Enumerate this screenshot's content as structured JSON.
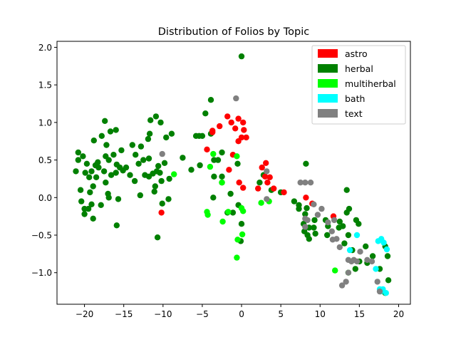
{
  "chart_data": {
    "type": "scatter",
    "title": "Distribution of Folios by Topic",
    "xlabel": "",
    "ylabel": "",
    "xlim": [
      -23.5,
      21.5
    ],
    "ylim": [
      -1.42,
      2.08
    ],
    "xticks": [
      -20,
      -15,
      -10,
      -5,
      0,
      5,
      10,
      15,
      20
    ],
    "yticks": [
      -1.0,
      -0.5,
      0.0,
      0.5,
      1.0,
      1.5,
      2.0
    ],
    "xtick_labels": [
      "−20",
      "−15",
      "−10",
      "−5",
      "0",
      "5",
      "10",
      "15",
      "20"
    ],
    "ytick_labels": [
      "−1.0",
      "−0.5",
      "0.0",
      "0.5",
      "1.0",
      "1.5",
      "2.0"
    ],
    "grid": false,
    "legend_position": "top-right",
    "series": [
      {
        "name": "herbal",
        "color": "#008000",
        "points": [
          [
            -21.1,
            0.35
          ],
          [
            -20.8,
            0.6
          ],
          [
            -20.8,
            0.5
          ],
          [
            -20.5,
            0.1
          ],
          [
            -20.4,
            -0.05
          ],
          [
            -20.2,
            0.55
          ],
          [
            -20.0,
            -0.15
          ],
          [
            -20.0,
            -0.22
          ],
          [
            -19.9,
            0.33
          ],
          [
            -19.7,
            0.45
          ],
          [
            -19.5,
            -0.15
          ],
          [
            -19.4,
            0.27
          ],
          [
            -19.3,
            0.07
          ],
          [
            -19.1,
            0.35
          ],
          [
            -19.1,
            -0.09
          ],
          [
            -18.9,
            0.15
          ],
          [
            -18.9,
            -0.28
          ],
          [
            -18.8,
            0.76
          ],
          [
            -18.6,
            0.43
          ],
          [
            -18.5,
            0.27
          ],
          [
            -18.3,
            0.47
          ],
          [
            -18.2,
            0.4
          ],
          [
            -17.9,
            -0.1
          ],
          [
            -17.8,
            0.82
          ],
          [
            -17.5,
            0.35
          ],
          [
            -17.4,
            1.02
          ],
          [
            -17.3,
            0.55
          ],
          [
            -17.3,
            0.2
          ],
          [
            -17.2,
            0.7
          ],
          [
            -17.0,
            0.05
          ],
          [
            -16.9,
            0.5
          ],
          [
            -16.9,
            0.0
          ],
          [
            -16.7,
            0.88
          ],
          [
            -16.6,
            0.3
          ],
          [
            -16.3,
            0.57
          ],
          [
            -16.0,
            0.9
          ],
          [
            -16.0,
            0.33
          ],
          [
            -15.9,
            -0.37
          ],
          [
            -15.9,
            0.44
          ],
          [
            -15.7,
            -0.02
          ],
          [
            -15.5,
            0.4
          ],
          [
            -15.3,
            0.63
          ],
          [
            -15.1,
            0.36
          ],
          [
            -14.7,
            0.4
          ],
          [
            -14.2,
            0.3
          ],
          [
            -13.9,
            0.7
          ],
          [
            -13.6,
            0.22
          ],
          [
            -13.5,
            0.57
          ],
          [
            -13.1,
            0.45
          ],
          [
            -12.9,
            0.03
          ],
          [
            -12.8,
            0.68
          ],
          [
            -12.5,
            0.5
          ],
          [
            -12.3,
            0.3
          ],
          [
            -11.9,
            0.78
          ],
          [
            -11.8,
            0.28
          ],
          [
            -11.8,
            0.52
          ],
          [
            -11.7,
            0.85
          ],
          [
            -11.6,
            1.03
          ],
          [
            -11.3,
            0.32
          ],
          [
            -11.1,
            0.08
          ],
          [
            -11.0,
            0.15
          ],
          [
            -10.9,
            1.08
          ],
          [
            -10.8,
            0.35
          ],
          [
            -10.7,
            -0.53
          ],
          [
            -10.6,
            0.42
          ],
          [
            -10.4,
            0.33
          ],
          [
            -10.3,
            1.0
          ],
          [
            -10.2,
            0.22
          ],
          [
            -10.1,
            -0.08
          ],
          [
            -9.8,
            0.46
          ],
          [
            -9.6,
            0.8
          ],
          [
            -9.3,
            -0.02
          ],
          [
            -8.9,
            0.85
          ],
          [
            -9.2,
            0.25
          ],
          [
            -7.5,
            0.53
          ],
          [
            -6.4,
            0.37
          ],
          [
            -5.8,
            0.82
          ],
          [
            -5.4,
            0.82
          ],
          [
            -5.3,
            0.43
          ],
          [
            -5.0,
            0.82
          ],
          [
            -4.6,
            1.12
          ],
          [
            -3.9,
            0.85
          ],
          [
            -3.9,
            1.3
          ],
          [
            -3.5,
            0.5
          ],
          [
            -3.5,
            0.28
          ],
          [
            -3.6,
            0.0
          ],
          [
            -3.0,
            0.5
          ],
          [
            -2.5,
            0.28
          ],
          [
            -2.5,
            0.2
          ],
          [
            -2.5,
            0.6
          ],
          [
            -1.8,
            -0.2
          ],
          [
            -1.4,
            0.05
          ],
          [
            -1.1,
            -0.2
          ],
          [
            -0.5,
            0.45
          ],
          [
            -0.4,
            -0.1
          ],
          [
            -0.1,
            -0.58
          ],
          [
            0.0,
            1.88
          ],
          [
            0.0,
            -0.35
          ],
          [
            2.3,
            0.2
          ],
          [
            2.8,
            0.3
          ],
          [
            3.8,
            0.1
          ],
          [
            5.0,
            0.07
          ],
          [
            6.7,
            -0.05
          ],
          [
            7.3,
            -0.1
          ],
          [
            7.3,
            -0.15
          ],
          [
            7.9,
            -0.35
          ],
          [
            8.0,
            -0.45
          ],
          [
            8.1,
            -0.22
          ],
          [
            8.2,
            0.45
          ],
          [
            8.3,
            -0.14
          ],
          [
            8.4,
            -0.5
          ],
          [
            8.6,
            -0.55
          ],
          [
            8.6,
            -0.4
          ],
          [
            9.2,
            -0.4
          ],
          [
            9.3,
            -0.3
          ],
          [
            9.4,
            -0.48
          ],
          [
            10.7,
            -0.3
          ],
          [
            10.9,
            -0.5
          ],
          [
            11.0,
            -0.38
          ],
          [
            12.4,
            -0.4
          ],
          [
            12.5,
            -0.32
          ],
          [
            12.9,
            -0.38
          ],
          [
            13.1,
            -0.61
          ],
          [
            13.4,
            0.1
          ],
          [
            13.4,
            -0.2
          ],
          [
            13.6,
            -0.5
          ],
          [
            13.7,
            -0.15
          ],
          [
            14.1,
            -0.7
          ],
          [
            14.5,
            -0.95
          ],
          [
            14.6,
            -0.3
          ],
          [
            14.9,
            -0.35
          ],
          [
            15.0,
            -0.85
          ],
          [
            15.8,
            -0.65
          ],
          [
            16.0,
            -0.87
          ],
          [
            16.7,
            -0.78
          ],
          [
            17.6,
            -0.95
          ],
          [
            18.3,
            -0.65
          ],
          [
            18.6,
            -0.78
          ],
          [
            18.7,
            -1.1
          ],
          [
            18.3,
            -1.27
          ]
        ]
      },
      {
        "name": "astro",
        "color": "#ff0000",
        "points": [
          [
            -10.2,
            -0.2
          ],
          [
            -4.4,
            0.64
          ],
          [
            -3.7,
            0.87
          ],
          [
            -3.7,
            0.89
          ],
          [
            -2.8,
            0.95
          ],
          [
            -1.8,
            1.08
          ],
          [
            -1.6,
            0.37
          ],
          [
            -1.3,
            1.0
          ],
          [
            -1.1,
            0.57
          ],
          [
            -0.8,
            0.92
          ],
          [
            -0.4,
            1.05
          ],
          [
            -0.4,
            0.75
          ],
          [
            -0.3,
            0.2
          ],
          [
            0.0,
            0.8
          ],
          [
            0.2,
            1.0
          ],
          [
            0.3,
            0.9
          ],
          [
            0.6,
            0.8
          ],
          [
            0.2,
            0.13
          ],
          [
            2.1,
            0.12
          ],
          [
            2.6,
            0.4
          ],
          [
            3.0,
            0.28
          ],
          [
            3.1,
            0.46
          ],
          [
            3.3,
            0.2
          ],
          [
            3.6,
            0.27
          ],
          [
            4.1,
            0.12
          ],
          [
            5.4,
            0.07
          ],
          [
            8.2,
            0.0
          ],
          [
            9.0,
            -0.08
          ],
          [
            11.7,
            -0.25
          ]
        ]
      },
      {
        "name": "multiherbal",
        "color": "#00ff00",
        "points": [
          [
            -8.6,
            0.31
          ],
          [
            -4.4,
            -0.19
          ],
          [
            -4.3,
            -0.23
          ],
          [
            -4.0,
            0.41
          ],
          [
            -3.6,
            0.58
          ],
          [
            -2.5,
            0.2
          ],
          [
            -2.4,
            -0.32
          ],
          [
            -1.7,
            -0.19
          ],
          [
            -0.6,
            0.55
          ],
          [
            -0.6,
            -0.8
          ],
          [
            -0.5,
            -0.56
          ],
          [
            0.0,
            -0.14
          ],
          [
            0.1,
            -0.49
          ],
          [
            0.2,
            -0.18
          ],
          [
            2.5,
            -0.07
          ],
          [
            3.5,
            -0.05
          ],
          [
            11.9,
            -0.97
          ],
          [
            13.6,
            -1.0
          ]
        ]
      },
      {
        "name": "bath",
        "color": "#00ffff",
        "points": [
          [
            13.8,
            -0.7
          ],
          [
            14.7,
            -0.5
          ],
          [
            17.1,
            -0.95
          ],
          [
            17.4,
            -0.58
          ],
          [
            17.6,
            -1.22
          ],
          [
            17.7,
            -1.25
          ],
          [
            17.8,
            -0.55
          ],
          [
            18.0,
            -1.22
          ],
          [
            18.1,
            -0.6
          ],
          [
            18.4,
            -1.27
          ],
          [
            18.5,
            -0.69
          ]
        ]
      },
      {
        "name": "text",
        "color": "#808080",
        "points": [
          [
            -10.1,
            0.58
          ],
          [
            -0.7,
            1.32
          ],
          [
            3.2,
            0.35
          ],
          [
            3.2,
            -0.02
          ],
          [
            7.5,
            0.2
          ],
          [
            8.1,
            0.2
          ],
          [
            8.8,
            0.2
          ],
          [
            8.1,
            -0.28
          ],
          [
            8.4,
            -0.3
          ],
          [
            8.1,
            -0.39
          ],
          [
            9.2,
            -0.09
          ],
          [
            9.7,
            -0.23
          ],
          [
            10.2,
            -0.15
          ],
          [
            11.0,
            -0.33
          ],
          [
            11.5,
            -0.45
          ],
          [
            11.6,
            -0.56
          ],
          [
            11.8,
            -0.3
          ],
          [
            12.1,
            -0.55
          ],
          [
            12.5,
            -0.66
          ],
          [
            12.8,
            -1.17
          ],
          [
            13.3,
            -1.12
          ],
          [
            13.6,
            -0.83
          ],
          [
            14.0,
            -0.85
          ],
          [
            13.6,
            -1.0
          ],
          [
            14.3,
            -0.83
          ],
          [
            14.7,
            -0.85
          ],
          [
            15.1,
            -0.72
          ],
          [
            16.0,
            -0.83
          ],
          [
            16.6,
            -0.85
          ],
          [
            17.3,
            -1.12
          ],
          [
            17.6,
            -1.25
          ]
        ]
      }
    ],
    "legend_order": [
      "astro",
      "herbal",
      "multiherbal",
      "bath",
      "text"
    ]
  }
}
